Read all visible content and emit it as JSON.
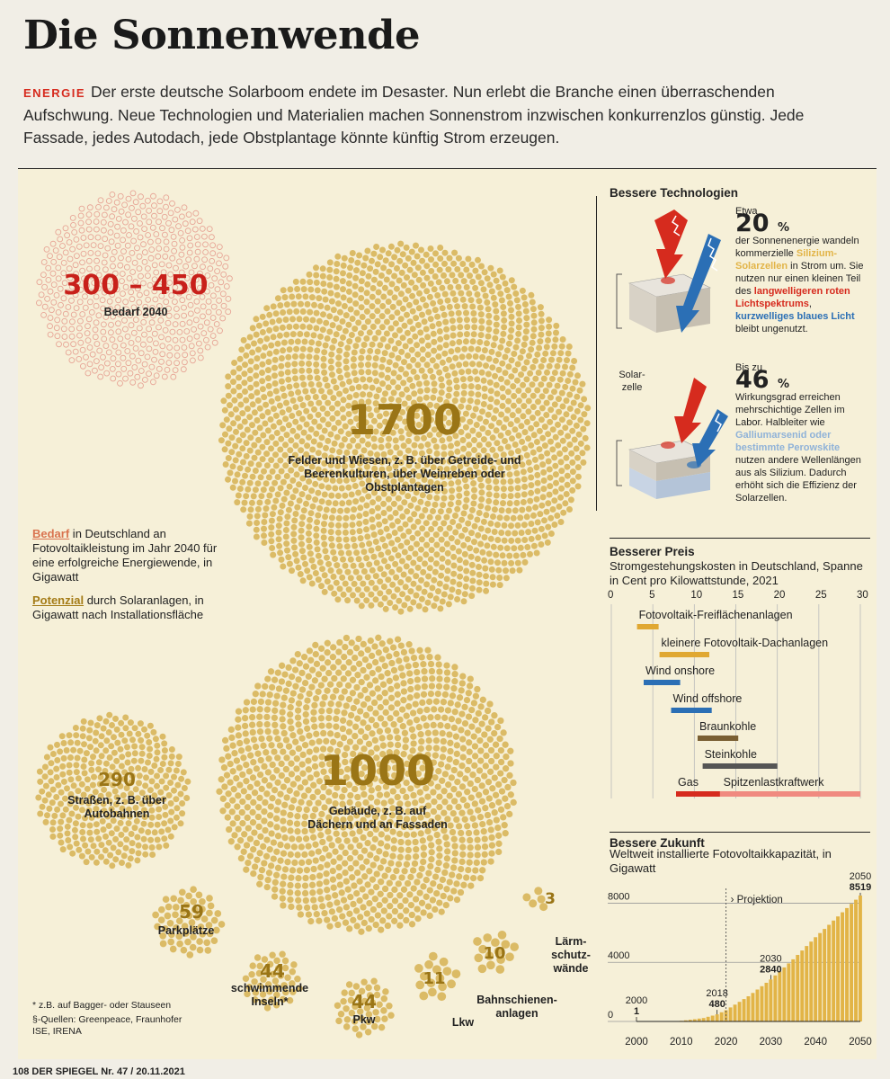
{
  "title": "Die Sonnenwende",
  "lead": {
    "kicker": "ENERGIE",
    "text": "Der erste deutsche Solarboom endete im Desaster. Nun erlebt die Branche einen überraschenden Aufschwung. Neue Technologien und Materialien machen Sonnenstrom inzwischen konkurrenzlos günstig. Jede Fassade, jedes Autodach, jede Obstplantage könnte künftig Strom erzeugen."
  },
  "demand": {
    "value": "300 – 450",
    "label": "Bedarf 2040"
  },
  "potentials": [
    {
      "value": "1700",
      "label": "Felder und Wiesen, z. B. über Getreide- und Beerenkulturen, über Weinreben oder Obstplantagen"
    },
    {
      "value": "1000",
      "label": "Gebäude, z. B. auf Dächern und an Fassaden"
    },
    {
      "value": "290",
      "label": "Straßen, z. B. über Autobahnen"
    },
    {
      "value": "59",
      "label": "Parkplätze"
    },
    {
      "value": "44",
      "label": "schwimmende Inseln*"
    },
    {
      "value": "44",
      "label": "Pkw"
    },
    {
      "value": "11",
      "label": "Lkw"
    },
    {
      "value": "10",
      "label": "Bahnschienen-anlagen"
    },
    {
      "value": "3",
      "label": "Lärm-schutz-wände"
    }
  ],
  "legend": {
    "demand_word": "Bedarf",
    "demand_text": " in Deutschland an Fotovoltaikleistung im Jahr 2040 für eine erfolgreiche Energiewende, in Gigawatt",
    "potential_word": "Potenzial",
    "potential_text": " durch Solaranlagen, in Gigawatt nach Installationsfläche"
  },
  "footnote": "* z.B. auf Bagger- oder Stauseen",
  "sources": "§-Quellen: Greenpeace, Fraunhofer ISE, IRENA",
  "tech": {
    "heading": "Bessere Technologien",
    "cell_label": "Solar-zelle",
    "block1": {
      "pre": "Etwa",
      "pct": "20",
      "unit": "%",
      "t1": "der Sonnenenergie wandeln kommerzielle ",
      "h1": "Silizium-Solarzellen",
      "t2": " in Strom um. Sie nutzen nur einen kleinen Teil des ",
      "h2": "langwelligeren roten Lichtspektrums",
      "t3": ", ",
      "h3": "kurzwelliges blaues Licht",
      "t4": " bleibt ungenutzt."
    },
    "block2": {
      "pre": "Bis zu",
      "pct": "46",
      "unit": "%",
      "t1": "Wirkungsgrad erreichen mehrschichtige Zellen im Labor. Halbleiter wie ",
      "h1": "Galliumarsenid oder bestimmte Perowskite",
      "t2": " nutzen andere Wellenlängen aus als Silizium. Dadurch erhöht sich die Effizienz der Solarzellen."
    }
  },
  "price": {
    "heading": "Besserer Preis",
    "subtitle": "Stromgestehungskosten in Deutschland, Spanne in Cent pro Kilowattstunde, 2021",
    "ticks": [
      "0",
      "5",
      "10",
      "15",
      "20",
      "25",
      "30"
    ]
  },
  "future": {
    "heading": "Bessere Zukunft",
    "subtitle": "Weltweit installierte Fotovoltaikkapazität, in Gigawatt",
    "projection": "› Projektion",
    "yticks": [
      "8000",
      "4000",
      "0"
    ],
    "xticks": [
      "2000",
      "2010",
      "2020",
      "2030",
      "2040",
      "2050"
    ],
    "annotations": [
      {
        "year": "2000",
        "value": "1"
      },
      {
        "year": "2018",
        "value": "480"
      },
      {
        "year": "2030",
        "value": "2840"
      },
      {
        "year": "2050",
        "value": "8519"
      }
    ]
  },
  "chart_data": [
    {
      "type": "bar",
      "title": "Besserer Preis",
      "subtitle": "Stromgestehungskosten in Deutschland, Spanne in Cent pro Kilowattstunde, 2021",
      "xlim": [
        0,
        30
      ],
      "categories": [
        "Fotovoltaik-Freiflächenanlagen",
        "kleinere Fotovoltaik-Dachanlagen",
        "Wind onshore",
        "Wind offshore",
        "Braunkohle",
        "Steinkohle",
        "Gas",
        "Spitzenlastkraftwerk"
      ],
      "ranges": [
        [
          3.1,
          5.7
        ],
        [
          5.8,
          11.8
        ],
        [
          3.9,
          8.3
        ],
        [
          7.2,
          12.1
        ],
        [
          10.4,
          15.3
        ],
        [
          11.0,
          20.0
        ],
        [
          7.8,
          13.1
        ],
        [
          13.1,
          30.0
        ]
      ],
      "colors": [
        "#e0a832",
        "#e0a832",
        "#2b6fb5",
        "#2b6fb5",
        "#7a5f33",
        "#555555",
        "#d62b1e",
        "#f08a80"
      ]
    },
    {
      "type": "area",
      "title": "Bessere Zukunft",
      "subtitle": "Weltweit installierte Fotovoltaikkapazität, in Gigawatt",
      "x": [
        2000,
        2005,
        2010,
        2015,
        2018,
        2020,
        2025,
        2030,
        2035,
        2040,
        2045,
        2050
      ],
      "values": [
        1,
        5,
        40,
        230,
        480,
        760,
        1700,
        2840,
        4200,
        5700,
        7100,
        8519
      ],
      "xlim": [
        2000,
        2050
      ],
      "ylim": [
        0,
        9000
      ],
      "projection_from": 2020
    }
  ],
  "footer": "108  DER SPIEGEL  Nr. 47 / 20.11.2021"
}
